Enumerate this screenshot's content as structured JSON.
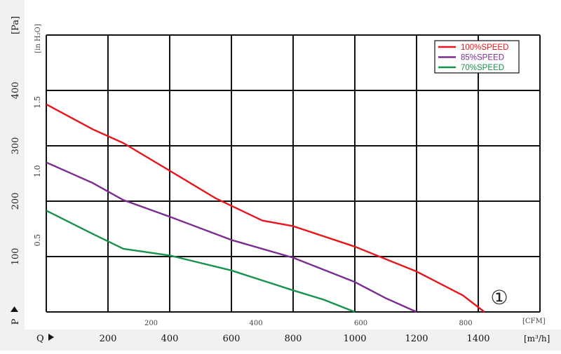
{
  "chart_data": {
    "type": "line",
    "title": "",
    "badge": "①",
    "axes": {
      "pressure_pa": {
        "unit_label": "[Pa]",
        "ticks": [
          100,
          200,
          300,
          400
        ],
        "range": [
          0,
          500
        ],
        "symbol": "P"
      },
      "pressure_inh2o": {
        "unit_label": "[in H₂O]",
        "ticks": [
          "0.5",
          "1.0",
          "1.5"
        ],
        "tick_values_pa": [
          124.5,
          249.1,
          373.6
        ]
      },
      "flow_m3h": {
        "unit_label": "[m³/h]",
        "ticks": [
          200,
          400,
          600,
          800,
          1000,
          1200,
          1400
        ],
        "range": [
          0,
          1600
        ],
        "symbol": "Q"
      },
      "flow_cfm": {
        "unit_label": "[CFM]",
        "ticks": [
          200,
          400,
          600,
          800
        ],
        "tick_values_m3h": [
          339.8,
          679.6,
          1019.4,
          1359.2
        ]
      }
    },
    "grid": true,
    "legend_position": "top-right",
    "series": [
      {
        "name": "100%SPEED",
        "color": "#e8141c",
        "x": [
          0,
          150,
          250,
          400,
          550,
          700,
          800,
          1000,
          1200,
          1350,
          1420
        ],
        "y": [
          375,
          330,
          305,
          255,
          205,
          165,
          155,
          118,
          73,
          30,
          0
        ]
      },
      {
        "name": "85%SPEED",
        "color": "#7b2d8f",
        "x": [
          0,
          150,
          250,
          400,
          600,
          800,
          1000,
          1100,
          1200
        ],
        "y": [
          270,
          233,
          202,
          172,
          130,
          98,
          54,
          25,
          0
        ]
      },
      {
        "name": "70%SPEED",
        "color": "#16924a",
        "x": [
          0,
          150,
          250,
          400,
          600,
          800,
          900,
          1000
        ],
        "y": [
          183,
          141,
          114,
          102,
          75,
          39,
          22,
          0
        ]
      }
    ]
  }
}
